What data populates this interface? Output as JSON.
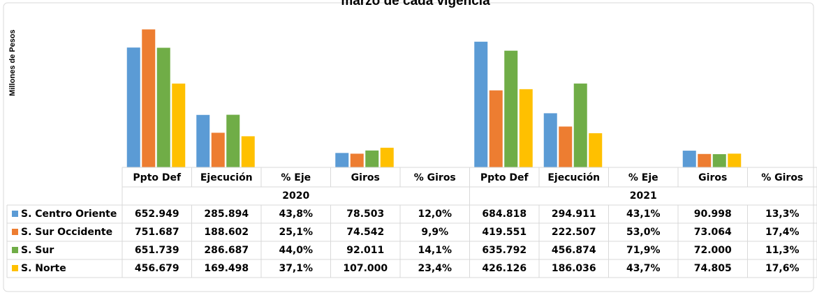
{
  "chart_data": {
    "type": "bar",
    "title": "marzo de cada vigencia",
    "y_label": "Millones de Pesos",
    "categories": [
      "Ppto Def",
      "Ejecución",
      "% Eje",
      "Giros",
      "% Giros",
      "Ppto Def",
      "Ejecución",
      "% Eje",
      "Giros",
      "% Giros"
    ],
    "groups": [
      "2020",
      "2021"
    ],
    "ylim": [
      0,
      760000
    ],
    "series": [
      {
        "name": "S. Centro Oriente",
        "color": "#5b9bd5",
        "values": [
          652949,
          285894,
          43.8,
          78503,
          12.0,
          684818,
          294911,
          43.1,
          90998,
          13.3
        ],
        "value_labels": [
          "652.949",
          "285.894",
          "43,8%",
          "78.503",
          "12,0%",
          "684.818",
          "294.911",
          "43,1%",
          "90.998",
          "13,3%"
        ]
      },
      {
        "name": "S. Sur Occidente",
        "color": "#ed7d31",
        "values": [
          751687,
          188602,
          25.1,
          74542,
          9.9,
          419551,
          222507,
          53.0,
          73064,
          17.4
        ],
        "value_labels": [
          "751.687",
          "188.602",
          "25,1%",
          "74.542",
          "9,9%",
          "419.551",
          "222.507",
          "53,0%",
          "73.064",
          "17,4%"
        ]
      },
      {
        "name": "S. Sur",
        "color": "#70ad47",
        "values": [
          651739,
          286687,
          44.0,
          92011,
          14.1,
          635792,
          456874,
          71.9,
          72000,
          11.3
        ],
        "value_labels": [
          "651.739",
          "286.687",
          "44,0%",
          "92.011",
          "14,1%",
          "635.792",
          "456.874",
          "71,9%",
          "72.000",
          "11,3%"
        ]
      },
      {
        "name": "S. Norte",
        "color": "#ffc000",
        "values": [
          456679,
          169498,
          37.1,
          107000,
          23.4,
          426126,
          186036,
          43.7,
          74805,
          17.6
        ],
        "value_labels": [
          "456.679",
          "169.498",
          "37,1%",
          "107.000",
          "23,4%",
          "426.126",
          "186.036",
          "43,7%",
          "74.805",
          "17,6%"
        ]
      }
    ]
  }
}
